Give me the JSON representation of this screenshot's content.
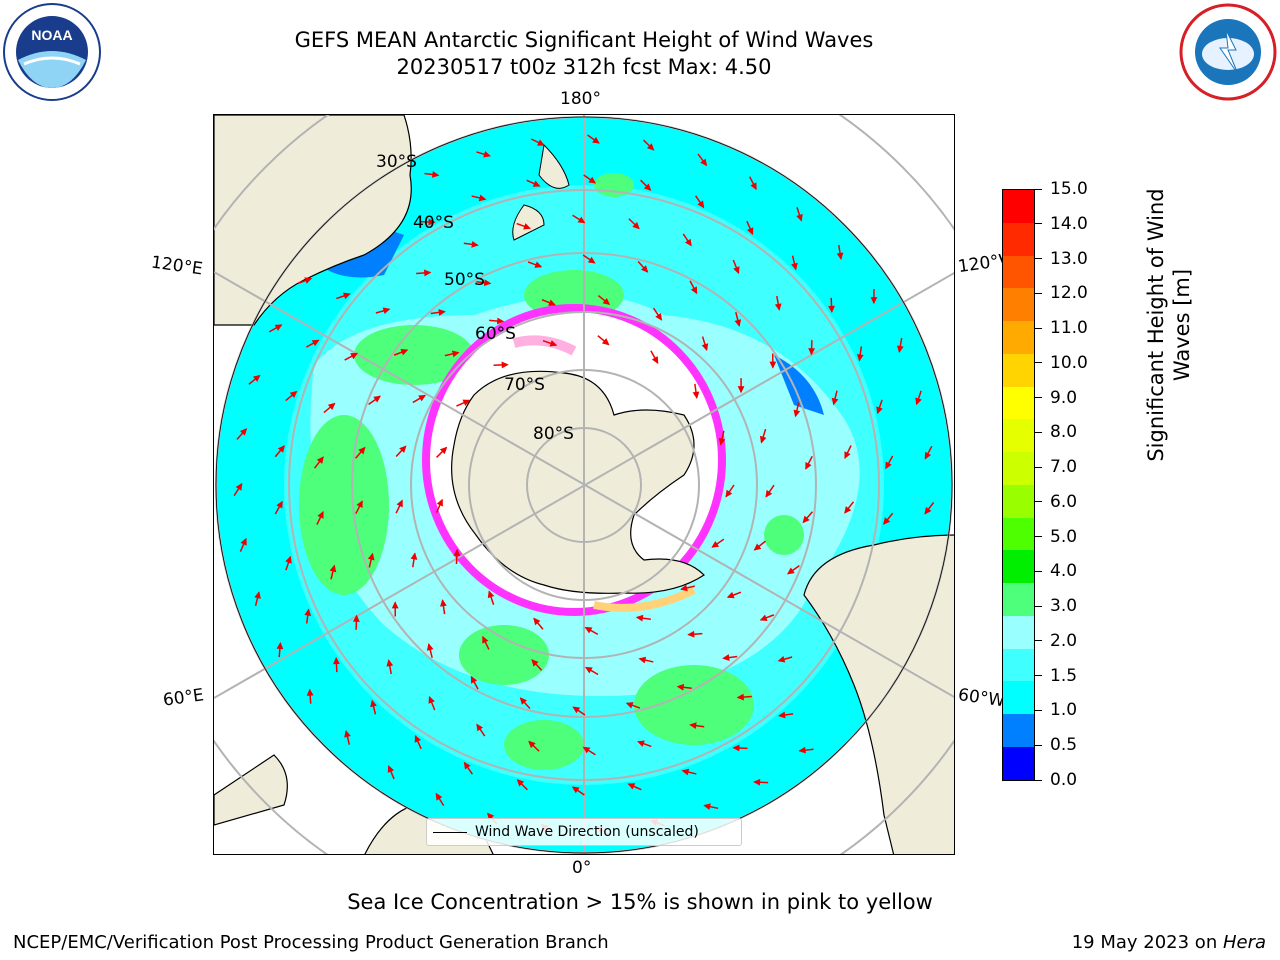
{
  "title": {
    "line1": "GEFS MEAN Antarctic Significant Height of Wind Waves",
    "line2": "20230517 t00z 312h fcst   Max: 4.50"
  },
  "map": {
    "longitude_labels": {
      "top": "180°",
      "bottom": "0°",
      "left_upper": "120°E",
      "left_lower": "60°E",
      "right_upper": "120°W",
      "right_lower": "60°W"
    },
    "latitude_labels": [
      "30°S",
      "40°S",
      "50°S",
      "60°S",
      "70°S",
      "80°S"
    ],
    "colors": {
      "land": "#efedda",
      "ocean_1_1_5": "#00ffff",
      "ocean_1_5_2": "#3fffff",
      "ocean_2_3": "#99ffff",
      "ocean_3_4": "#4dff7a",
      "ice_edge": "#ff33ff",
      "arrows": "#ee0000",
      "grid": "#b3b3b3"
    }
  },
  "legend": {
    "label": "Wind Wave Direction (unscaled)"
  },
  "colorbar": {
    "label": "Significant Height of Wind Waves [m]",
    "label_line1": "Significant Height of Wind",
    "label_line2": "Waves [m]",
    "ticks": [
      "15.0",
      "14.0",
      "13.0",
      "12.0",
      "11.0",
      "10.0",
      "9.0",
      "8.0",
      "7.0",
      "6.0",
      "5.0",
      "4.0",
      "3.0",
      "2.0",
      "1.5",
      "1.0",
      "0.5",
      "0.0"
    ],
    "colors": [
      "#ff0000",
      "#ff2a00",
      "#ff5500",
      "#ff8000",
      "#ffaa00",
      "#ffd400",
      "#ffff00",
      "#e6ff00",
      "#ccff00",
      "#99ff00",
      "#4dff00",
      "#00ee00",
      "#4dff7a",
      "#99ffff",
      "#3fffff",
      "#00ffff",
      "#0080ff",
      "#0000ff"
    ]
  },
  "footnote": "Sea Ice Concentration > 15% is shown in pink to yellow",
  "footer": {
    "left": "NCEP/EMC/Verification Post Processing Product Generation Branch",
    "right_prefix": "19 May 2023 on ",
    "right_host": "Hera"
  },
  "logos": {
    "noaa_text": "NOAA",
    "nws_text": "NATIONAL WEATHER SERVICE"
  }
}
